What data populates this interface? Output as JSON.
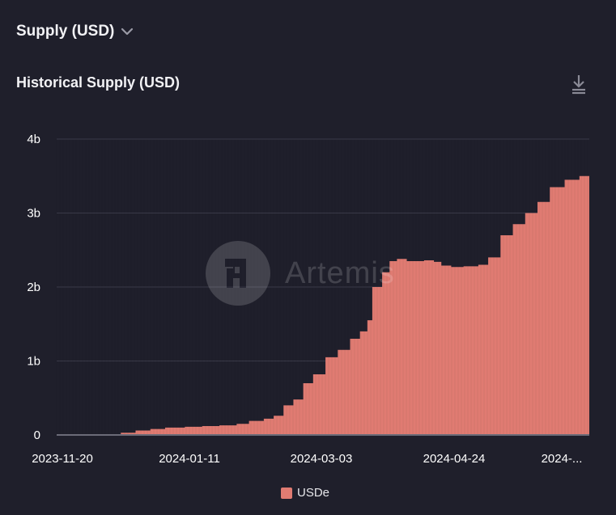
{
  "selector": {
    "label": "Supply (USD)"
  },
  "card": {
    "title": "Historical Supply (USD)"
  },
  "watermark": {
    "text": "Artemis"
  },
  "colors": {
    "background": "#1f1f2b",
    "series": "#e07b72",
    "grid": "#3a3a48",
    "axis_text": "#ffffff"
  },
  "icons": {
    "selector": "chevron-down-icon",
    "download": "download-icon",
    "watermark": "artemis-logo-icon"
  },
  "chart_data": {
    "type": "area",
    "title": "Historical Supply (USD)",
    "y_ticks": [
      "0",
      "1b",
      "2b",
      "3b",
      "4b"
    ],
    "y_tick_values": [
      0,
      1000000000,
      2000000000,
      3000000000,
      4000000000
    ],
    "ylim": [
      0,
      4000000000
    ],
    "x_ticks": [
      "2023-11-20",
      "2024-01-11",
      "2024-03-03",
      "2024-04-24",
      "2024-..."
    ],
    "xlim": [
      "2023-11-20",
      "2024-06-23"
    ],
    "grid": true,
    "legend_position": "bottom",
    "series": [
      {
        "name": "USDe",
        "color": "#e07b72",
        "points": [
          [
            "2023-11-20",
            0
          ],
          [
            "2023-12-01",
            0
          ],
          [
            "2023-12-10",
            0
          ],
          [
            "2023-12-16",
            30000000
          ],
          [
            "2023-12-22",
            60000000
          ],
          [
            "2023-12-28",
            80000000
          ],
          [
            "2024-01-03",
            100000000
          ],
          [
            "2024-01-11",
            110000000
          ],
          [
            "2024-01-18",
            120000000
          ],
          [
            "2024-01-25",
            130000000
          ],
          [
            "2024-02-01",
            150000000
          ],
          [
            "2024-02-06",
            190000000
          ],
          [
            "2024-02-12",
            220000000
          ],
          [
            "2024-02-16",
            260000000
          ],
          [
            "2024-02-20",
            400000000
          ],
          [
            "2024-02-24",
            480000000
          ],
          [
            "2024-02-28",
            700000000
          ],
          [
            "2024-03-03",
            820000000
          ],
          [
            "2024-03-08",
            1050000000
          ],
          [
            "2024-03-13",
            1150000000
          ],
          [
            "2024-03-18",
            1300000000
          ],
          [
            "2024-03-22",
            1400000000
          ],
          [
            "2024-03-25",
            1550000000
          ],
          [
            "2024-03-27",
            2000000000
          ],
          [
            "2024-03-31",
            2200000000
          ],
          [
            "2024-04-03",
            2350000000
          ],
          [
            "2024-04-06",
            2380000000
          ],
          [
            "2024-04-10",
            2350000000
          ],
          [
            "2024-04-17",
            2360000000
          ],
          [
            "2024-04-21",
            2340000000
          ],
          [
            "2024-04-24",
            2290000000
          ],
          [
            "2024-04-28",
            2270000000
          ],
          [
            "2024-05-03",
            2280000000
          ],
          [
            "2024-05-09",
            2300000000
          ],
          [
            "2024-05-13",
            2400000000
          ],
          [
            "2024-05-18",
            2700000000
          ],
          [
            "2024-05-23",
            2850000000
          ],
          [
            "2024-05-28",
            3000000000
          ],
          [
            "2024-06-02",
            3150000000
          ],
          [
            "2024-06-07",
            3350000000
          ],
          [
            "2024-06-13",
            3450000000
          ],
          [
            "2024-06-19",
            3500000000
          ],
          [
            "2024-06-23",
            3500000000
          ]
        ]
      }
    ]
  }
}
